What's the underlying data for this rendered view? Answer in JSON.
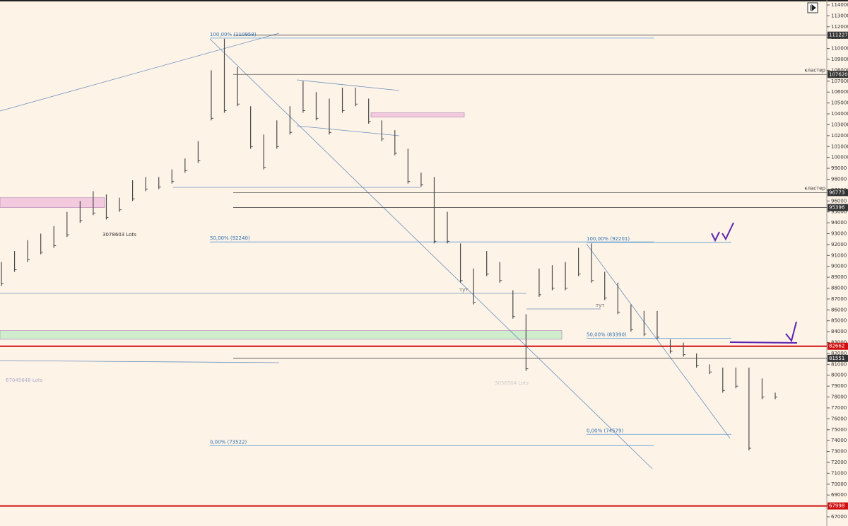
{
  "chart_data": {
    "type": "ohlc",
    "color": "#4a4a4a",
    "ylim": [
      67000,
      114000
    ],
    "yticks": [
      67000,
      68000,
      69000,
      70000,
      71000,
      72000,
      73000,
      74000,
      75000,
      76000,
      77000,
      78000,
      79000,
      80000,
      81000,
      82000,
      83000,
      84000,
      85000,
      86000,
      87000,
      88000,
      89000,
      90000,
      91000,
      92000,
      93000,
      94000,
      95000,
      96000,
      97000,
      98000,
      99000,
      100000,
      101000,
      102000,
      103000,
      104000,
      105000,
      106000,
      107000,
      108000,
      109000,
      110000,
      111000,
      112000,
      113000,
      114000
    ],
    "bars": {
      "high": [
        90400,
        91400,
        92400,
        93000,
        93700,
        95000,
        96000,
        96900,
        96600,
        96300,
        97900,
        98200,
        98200,
        98900,
        99900,
        101500,
        108000,
        110900,
        108300,
        104700,
        102100,
        103400,
        104700,
        107000,
        106000,
        105400,
        106400,
        106400,
        105400,
        103400,
        102500,
        100800,
        98600,
        98200,
        95000,
        92100,
        89800,
        91400,
        90400,
        87800,
        85600,
        89800,
        90100,
        90400,
        91700,
        92100,
        89500,
        88500,
        86500,
        85900,
        85900,
        83300,
        83000,
        82000,
        81000,
        80700,
        80700,
        80700,
        79700,
        78400
      ],
      "low": [
        88200,
        89500,
        90400,
        91100,
        91700,
        92700,
        94000,
        94700,
        94300,
        95000,
        96000,
        96900,
        97100,
        97600,
        98600,
        99500,
        103400,
        104100,
        104700,
        100800,
        98900,
        100800,
        102100,
        104100,
        103400,
        102100,
        104100,
        104700,
        103100,
        101500,
        100200,
        97600,
        97300,
        92100,
        92100,
        88500,
        86500,
        89100,
        88500,
        85200,
        80400,
        87200,
        87800,
        87800,
        89100,
        88500,
        86900,
        85600,
        84000,
        83600,
        83300,
        82000,
        81700,
        80700,
        80100,
        78400,
        78800,
        73100,
        77800,
        77800
      ]
    },
    "levels": [
      {
        "value": 111227,
        "label": "111227",
        "color": "#333"
      },
      {
        "value": 107620,
        "label": "107620",
        "note": "кластер",
        "color": "#555"
      },
      {
        "value": 96773,
        "label": "96773",
        "note": "кластер",
        "color": "#555"
      },
      {
        "value": 95396,
        "label": "95396",
        "color": "#555"
      },
      {
        "value": 82662,
        "label": "82662",
        "color": "#d01010"
      },
      {
        "value": 81551,
        "label": "81551",
        "color": "#333"
      },
      {
        "value": 67998,
        "label": "67998",
        "color": "#d01010"
      }
    ],
    "fib_levels": [
      {
        "value": 110958,
        "label": "100,00% (110958)"
      },
      {
        "value": 92240,
        "label": "50,00% (92240)"
      },
      {
        "value": 73522,
        "label": "0,00% (73522)"
      },
      {
        "value": 92201,
        "label": "100,00% (92201)"
      },
      {
        "value": 83390,
        "label": "50,00% (83390)"
      },
      {
        "value": 74579,
        "label": "0,00% (74579)"
      }
    ],
    "zones": [
      {
        "from": 103700,
        "to": 104100,
        "color": "#f3c9dd"
      },
      {
        "from": 95400,
        "to": 96300,
        "color": "#f3c9dd"
      },
      {
        "from": 83300,
        "to": 84100,
        "color": "#cfeccc"
      }
    ],
    "annotations": [
      "3078603 Lots",
      "67045648 Lots",
      "3056504 Lots",
      "тут",
      "тут"
    ]
  }
}
